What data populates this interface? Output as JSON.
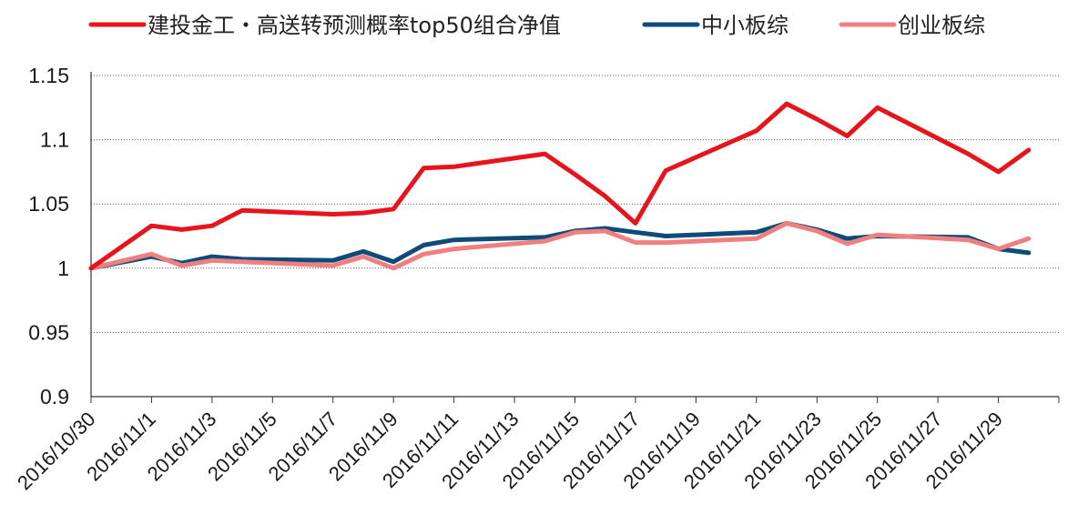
{
  "chart_data": {
    "type": "line",
    "title": "",
    "xlabel": "",
    "ylabel": "",
    "ylim": [
      0.9,
      1.15
    ],
    "yticks": [
      "0.9",
      "0.95",
      "1",
      "1.05",
      "1.1",
      "1.15"
    ],
    "grid": "horizontal dotted",
    "legend_position": "top",
    "x_tick_labels": [
      "2016/10/30",
      "2016/11/1",
      "2016/11/3",
      "2016/11/5",
      "2016/11/7",
      "2016/11/9",
      "2016/11/11",
      "2016/11/13",
      "2016/11/15",
      "2016/11/17",
      "2016/11/19",
      "2016/11/21",
      "2016/11/23",
      "2016/11/25",
      "2016/11/27",
      "2016/11/29"
    ],
    "x": [
      "2016-10-30",
      "2016-11-01",
      "2016-11-02",
      "2016-11-03",
      "2016-11-04",
      "2016-11-07",
      "2016-11-08",
      "2016-11-09",
      "2016-11-10",
      "2016-11-11",
      "2016-11-14",
      "2016-11-15",
      "2016-11-16",
      "2016-11-17",
      "2016-11-18",
      "2016-11-21",
      "2016-11-22",
      "2016-11-23",
      "2016-11-24",
      "2016-11-25",
      "2016-11-28",
      "2016-11-29",
      "2016-11-30"
    ],
    "series": [
      {
        "name": "建投金工・高送转预测概率top50组合净值",
        "color": "#e8141b",
        "values": [
          1.0,
          1.033,
          1.03,
          1.033,
          1.045,
          1.042,
          1.043,
          1.046,
          1.078,
          1.079,
          1.089,
          1.073,
          1.056,
          1.035,
          1.076,
          1.107,
          1.128,
          1.116,
          1.103,
          1.125,
          1.089,
          1.075,
          1.092
        ]
      },
      {
        "name": "中小板综",
        "color": "#0c4b7a",
        "values": [
          1.0,
          1.009,
          1.004,
          1.009,
          1.007,
          1.006,
          1.013,
          1.005,
          1.018,
          1.022,
          1.024,
          1.029,
          1.031,
          1.028,
          1.025,
          1.028,
          1.035,
          1.03,
          1.023,
          1.025,
          1.024,
          1.015,
          1.012
        ]
      },
      {
        "name": "创业板综",
        "color": "#f08080",
        "values": [
          1.0,
          1.011,
          1.002,
          1.006,
          1.005,
          1.002,
          1.009,
          1.0,
          1.011,
          1.015,
          1.021,
          1.028,
          1.029,
          1.02,
          1.02,
          1.023,
          1.035,
          1.029,
          1.019,
          1.026,
          1.022,
          1.015,
          1.023
        ]
      }
    ]
  }
}
